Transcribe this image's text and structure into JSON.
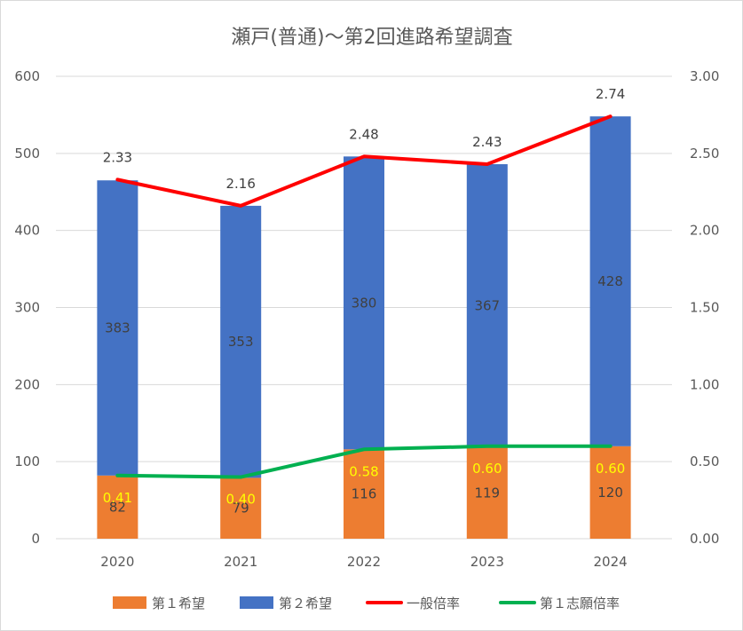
{
  "chart_data": {
    "type": "bar",
    "title": "瀬戸(普通)～第2回進路希望調査",
    "categories": [
      "2020",
      "2021",
      "2022",
      "2023",
      "2024"
    ],
    "stacked": true,
    "series": [
      {
        "name": "第１希望",
        "kind": "bar",
        "axis": "left",
        "color": "#ed7d31",
        "values": [
          82,
          79,
          116,
          119,
          120
        ],
        "labels": [
          "82",
          "79",
          "116",
          "119",
          "120"
        ]
      },
      {
        "name": "第２希望",
        "kind": "bar",
        "axis": "left",
        "color": "#4472c4",
        "values": [
          383,
          353,
          380,
          367,
          428
        ],
        "labels": [
          "383",
          "353",
          "380",
          "367",
          "428"
        ]
      },
      {
        "name": "一般倍率",
        "kind": "line",
        "axis": "right",
        "color": "#ff0000",
        "values": [
          2.33,
          2.16,
          2.48,
          2.43,
          2.74
        ],
        "labels": [
          "2.33",
          "2.16",
          "2.48",
          "2.43",
          "2.74"
        ]
      },
      {
        "name": "第１志願倍率",
        "kind": "line",
        "axis": "right",
        "color": "#00b050",
        "values": [
          0.41,
          0.4,
          0.58,
          0.6,
          0.6
        ],
        "labels": [
          "0.41",
          "0.40",
          "0.58",
          "0.60",
          "0.60"
        ]
      }
    ],
    "y_left": {
      "min": 0,
      "max": 600,
      "ticks": [
        "0",
        "100",
        "200",
        "300",
        "400",
        "500",
        "600"
      ]
    },
    "y_right": {
      "min": 0,
      "max": 3,
      "ticks": [
        "0.00",
        "0.50",
        "1.00",
        "1.50",
        "2.00",
        "2.50",
        "3.00"
      ]
    },
    "grid": true,
    "legend_position": "bottom"
  }
}
